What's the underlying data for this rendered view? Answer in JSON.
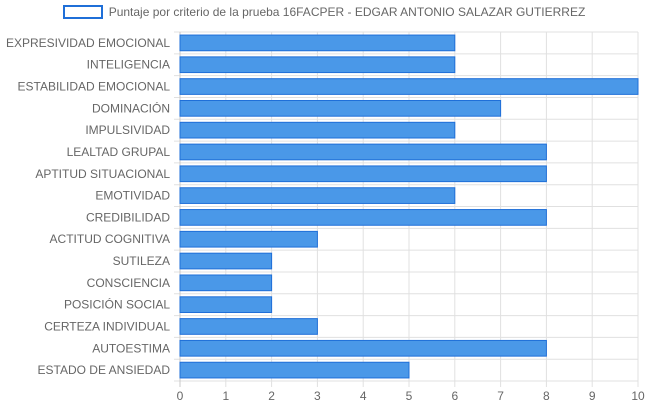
{
  "chart_data": {
    "type": "bar",
    "orientation": "horizontal",
    "categories": [
      "EXPRESIVIDAD EMOCIONAL",
      "INTELIGENCIA",
      "ESTABILIDAD EMOCIONAL",
      "DOMINACIÓN",
      "IMPULSIVIDAD",
      "LEALTAD GRUPAL",
      "APTITUD SITUACIONAL",
      "EMOTIVIDAD",
      "CREDIBILIDAD",
      "ACTITUD COGNITIVA",
      "SUTILEZA",
      "CONSCIENCIA",
      "POSICIÓN SOCIAL",
      "CERTEZA INDIVIDUAL",
      "AUTOESTIMA",
      "ESTADO DE ANSIEDAD"
    ],
    "series": [
      {
        "name": "Puntaje por criterio de la prueba 16FACPER - EDGAR ANTONIO SALAZAR GUTIERREZ",
        "values": [
          6,
          6,
          10,
          7,
          6,
          8,
          8,
          6,
          8,
          3,
          2,
          2,
          2,
          3,
          8,
          5
        ]
      }
    ],
    "xlim": [
      0,
      10
    ],
    "xticks": [
      "0",
      "1",
      "2",
      "3",
      "4",
      "5",
      "6",
      "7",
      "8",
      "9",
      "10"
    ],
    "grid": true,
    "legend_position": "top",
    "colors": {
      "bar_fill": "#4a98e8",
      "bar_border": "#1f6fd8",
      "grid": "#e0e0e0",
      "text": "#666666"
    }
  }
}
